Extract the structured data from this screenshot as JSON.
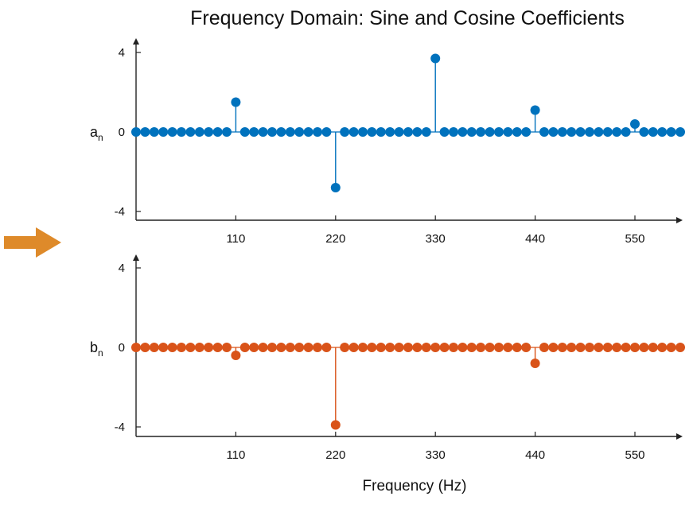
{
  "chart_data": [
    {
      "type": "stem",
      "title": "Frequency Domain: Sine and Cosine Coefficients",
      "ylabel": "a",
      "ylabel_subscript": "n",
      "xlabel": "",
      "color": "#0072BD",
      "xlim": [
        0,
        600
      ],
      "ylim": [
        -4.6,
        4.6
      ],
      "yticks": [
        "4",
        "0",
        "-4"
      ],
      "xticks": [
        "110",
        "220",
        "330",
        "440",
        "550"
      ],
      "x_step_hz": 10,
      "nonzero": [
        {
          "x": 110,
          "y": 1.5
        },
        {
          "x": 220,
          "y": -2.8
        },
        {
          "x": 330,
          "y": 3.7
        },
        {
          "x": 440,
          "y": 1.1
        },
        {
          "x": 550,
          "y": 0.4
        }
      ]
    },
    {
      "type": "stem",
      "title": "",
      "ylabel": "b",
      "ylabel_subscript": "n",
      "xlabel": "Frequency (Hz)",
      "color": "#D95319",
      "xlim": [
        0,
        600
      ],
      "ylim": [
        -4.6,
        4.6
      ],
      "yticks": [
        "4",
        "0",
        "-4"
      ],
      "xticks": [
        "110",
        "220",
        "330",
        "440",
        "550"
      ],
      "x_step_hz": 10,
      "nonzero": [
        {
          "x": 110,
          "y": -0.4
        },
        {
          "x": 220,
          "y": -3.9
        },
        {
          "x": 440,
          "y": -0.8
        }
      ]
    }
  ],
  "decor": {
    "arrow_color": "#DE8A2A",
    "arrow_icon": "right-arrow-icon"
  }
}
